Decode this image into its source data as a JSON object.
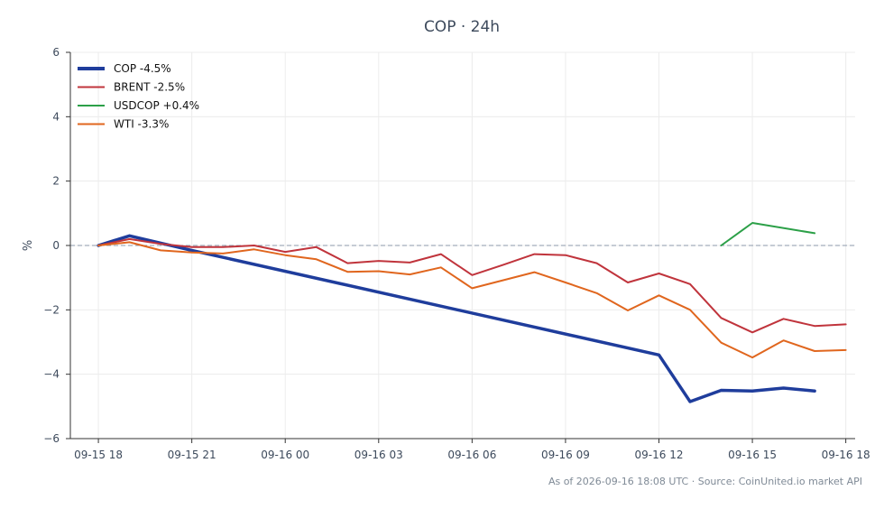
{
  "chart_data": {
    "type": "line",
    "title": "COP · 24h",
    "ylabel": "%",
    "xlabel": "",
    "ylim": [
      -6,
      6
    ],
    "yticks": [
      -6,
      -4,
      -2,
      0,
      2,
      4,
      6
    ],
    "ytick_labels": [
      "−6",
      "−4",
      "−2",
      "0",
      "2",
      "4",
      "6"
    ],
    "x_range": [
      -0.9,
      24.3
    ],
    "xticks": [
      {
        "x": 0,
        "label": "09-15 18"
      },
      {
        "x": 3,
        "label": "09-15 21"
      },
      {
        "x": 6,
        "label": "09-16 00"
      },
      {
        "x": 9,
        "label": "09-16 03"
      },
      {
        "x": 12,
        "label": "09-16 06"
      },
      {
        "x": 15,
        "label": "09-16 09"
      },
      {
        "x": 18,
        "label": "09-16 12"
      },
      {
        "x": 21,
        "label": "09-16 15"
      },
      {
        "x": 24,
        "label": "09-16 18"
      }
    ],
    "grid": true,
    "zero_line": true,
    "legend_position": "top-left",
    "series": [
      {
        "name": "COP -4.5%",
        "color": "#1f3d9c",
        "width": "thick",
        "points": [
          [
            0,
            0.0
          ],
          [
            1,
            0.3
          ],
          [
            3,
            -0.15
          ],
          [
            18,
            -3.4
          ],
          [
            19,
            -4.85
          ],
          [
            20,
            -4.5
          ],
          [
            21,
            -4.52
          ],
          [
            22,
            -4.43
          ],
          [
            23,
            -4.52
          ]
        ]
      },
      {
        "name": "BRENT -2.5%",
        "color": "#c0343c",
        "width": "thin",
        "points": [
          [
            0,
            0.0
          ],
          [
            1,
            0.2
          ],
          [
            2,
            0.05
          ],
          [
            3,
            -0.05
          ],
          [
            4,
            -0.05
          ],
          [
            5,
            0.0
          ],
          [
            6,
            -0.2
          ],
          [
            7,
            -0.05
          ],
          [
            8,
            -0.55
          ],
          [
            9,
            -0.48
          ],
          [
            10,
            -0.53
          ],
          [
            11,
            -0.27
          ],
          [
            12,
            -0.92
          ],
          [
            13,
            -0.6
          ],
          [
            14,
            -0.27
          ],
          [
            15,
            -0.3
          ],
          [
            16,
            -0.55
          ],
          [
            17,
            -1.15
          ],
          [
            18,
            -0.87
          ],
          [
            19,
            -1.2
          ],
          [
            20,
            -2.25
          ],
          [
            21,
            -2.7
          ],
          [
            22,
            -2.28
          ],
          [
            23,
            -2.5
          ],
          [
            24,
            -2.45
          ]
        ]
      },
      {
        "name": "USDCOP +0.4%",
        "color": "#2ca048",
        "width": "thin",
        "points": [
          [
            20,
            0.0
          ],
          [
            21,
            0.7
          ],
          [
            23,
            0.38
          ]
        ]
      },
      {
        "name": "WTI -3.3%",
        "color": "#e0661e",
        "width": "thin",
        "points": [
          [
            0,
            0.0
          ],
          [
            1,
            0.1
          ],
          [
            2,
            -0.15
          ],
          [
            3,
            -0.22
          ],
          [
            4,
            -0.25
          ],
          [
            5,
            -0.12
          ],
          [
            6,
            -0.3
          ],
          [
            7,
            -0.43
          ],
          [
            8,
            -0.82
          ],
          [
            9,
            -0.8
          ],
          [
            10,
            -0.9
          ],
          [
            11,
            -0.68
          ],
          [
            12,
            -1.33
          ],
          [
            13,
            -1.08
          ],
          [
            14,
            -0.83
          ],
          [
            15,
            -1.15
          ],
          [
            16,
            -1.48
          ],
          [
            17,
            -2.02
          ],
          [
            18,
            -1.55
          ],
          [
            19,
            -2.0
          ],
          [
            20,
            -3.02
          ],
          [
            21,
            -3.48
          ],
          [
            22,
            -2.95
          ],
          [
            23,
            -3.28
          ],
          [
            24,
            -3.25
          ]
        ]
      }
    ]
  },
  "footer": "As of 2026-09-16 18:08 UTC · Source: CoinUnited.io market API"
}
